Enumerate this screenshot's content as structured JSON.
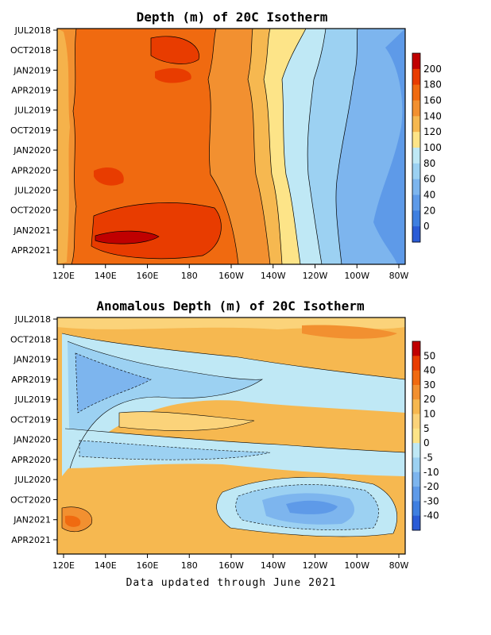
{
  "footer": "Data updated through June 2021",
  "chart_data": [
    {
      "type": "heatmap",
      "title": "Depth (m) of 20C Isotherm",
      "x_ticks": [
        "120E",
        "140E",
        "160E",
        "180",
        "160W",
        "140W",
        "120W",
        "100W",
        "80W"
      ],
      "y_ticks": [
        "JUL2018",
        "OCT2018",
        "JAN2019",
        "APR2019",
        "JUL2019",
        "OCT2019",
        "JAN2020",
        "APR2020",
        "JUL2020",
        "OCT2020",
        "JAN2021",
        "APR2021"
      ],
      "colorbar_labels": [
        "200",
        "180",
        "160",
        "140",
        "120",
        "100",
        "80",
        "60",
        "40",
        "20",
        "0"
      ],
      "colorbar_colors": [
        "#c00000",
        "#e83c00",
        "#f06a10",
        "#f29030",
        "#f6b850",
        "#fde488",
        "#bfe8f5",
        "#9cd1f2",
        "#7db5ee",
        "#5e9ae8",
        "#3f7fe0",
        "#2a5bd6"
      ],
      "legend": "right"
    },
    {
      "type": "heatmap",
      "title": "Anomalous Depth (m) of 20C Isotherm",
      "x_ticks": [
        "120E",
        "140E",
        "160E",
        "180",
        "160W",
        "140W",
        "120W",
        "100W",
        "80W"
      ],
      "y_ticks": [
        "JUL2018",
        "OCT2018",
        "JAN2019",
        "APR2019",
        "JUL2019",
        "OCT2019",
        "JAN2020",
        "APR2020",
        "JUL2020",
        "OCT2020",
        "JAN2021",
        "APR2021"
      ],
      "colorbar_labels": [
        "50",
        "40",
        "30",
        "20",
        "10",
        "5",
        "0",
        "-5",
        "-10",
        "-20",
        "-30",
        "-40"
      ],
      "colorbar_colors": [
        "#c00000",
        "#e83c00",
        "#f06a10",
        "#f29030",
        "#f6b850",
        "#fbd37a",
        "#fde488",
        "#bfe8f5",
        "#9cd1f2",
        "#7db5ee",
        "#5e9ae8",
        "#3f7fe0",
        "#2a5bd6"
      ],
      "legend": "right"
    }
  ]
}
